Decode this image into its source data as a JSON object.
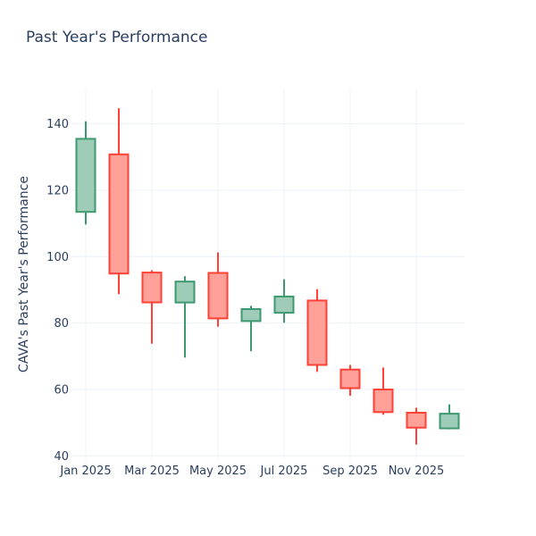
{
  "chart": {
    "title": "Past Year's Performance",
    "ylabel": "CAVA's Past Year's Performance"
  },
  "chart_data": {
    "type": "candlestick",
    "title": "Past Year's Performance",
    "xlabel": "",
    "ylabel": "CAVA's Past Year's Performance",
    "categories": [
      "Jan 2025",
      "Feb 2025",
      "Mar 2025",
      "Apr 2025",
      "May 2025",
      "Jun 2025",
      "Jul 2025",
      "Aug 2025",
      "Sep 2025",
      "Oct 2025",
      "Nov 2025",
      "Dec 2025"
    ],
    "series": {
      "open": [
        113.5,
        130.8,
        95.2,
        86.2,
        95.1,
        80.6,
        83.1,
        86.8,
        66.0,
        60.0,
        53.0,
        48.3
      ],
      "high": [
        140.8,
        144.7,
        95.9,
        94.1,
        101.3,
        85.2,
        93.2,
        90.2,
        67.4,
        66.6,
        54.5,
        55.5
      ],
      "low": [
        109.7,
        88.7,
        73.8,
        69.6,
        78.9,
        71.5,
        80.1,
        65.3,
        58.1,
        52.4,
        43.4,
        48.0
      ],
      "close": [
        135.5,
        94.9,
        86.2,
        92.5,
        81.4,
        84.2,
        88.0,
        67.4,
        60.4,
        53.2,
        48.5,
        52.7
      ]
    },
    "x_tick_labels": [
      "Jan 2025",
      "Mar 2025",
      "May 2025",
      "Jul 2025",
      "Sep 2025",
      "Nov 2025"
    ],
    "x_tick_indices": [
      0,
      2,
      4,
      6,
      8,
      10
    ],
    "y_ticks": [
      40,
      60,
      80,
      100,
      120,
      140
    ],
    "ylim": [
      39.0,
      150.4
    ],
    "grid": true,
    "legend": false,
    "colors": {
      "increasing_line": "#3D9970",
      "increasing_fill": "#9ECCB8",
      "decreasing_line": "#FF4136",
      "decreasing_fill": "#FFA099",
      "grid_line": "#EBF0F8",
      "tick_text": "#2a3f5f",
      "background": "#ffffff"
    }
  }
}
